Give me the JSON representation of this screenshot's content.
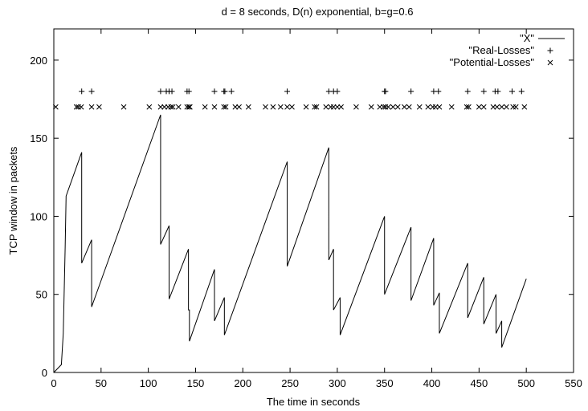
{
  "chart_data": {
    "type": "line",
    "title": "d = 8 seconds, D(n) exponential, b=g=0.6",
    "xlabel": "The time in seconds",
    "ylabel": "TCP window in packets",
    "xlim": [
      0,
      550
    ],
    "ylim": [
      0,
      220
    ],
    "xticks": [
      0,
      50,
      100,
      150,
      200,
      250,
      300,
      350,
      400,
      450,
      500,
      550
    ],
    "yticks": [
      0,
      50,
      100,
      150,
      200
    ],
    "grid": false,
    "legend_position": "top-right",
    "series": [
      {
        "name": "\"X\"",
        "style": "line",
        "x": [
          0,
          8,
          10,
          12,
          13,
          29.5,
          29.5,
          40,
          40,
          113,
          113,
          122,
          122,
          142.5,
          142.5,
          143.5,
          143.5,
          170,
          170,
          180.5,
          180.5,
          247,
          247,
          291,
          291,
          296,
          296,
          303,
          303,
          350,
          350,
          378,
          378,
          402,
          402,
          408,
          408,
          438,
          438,
          455,
          455,
          468,
          468,
          474,
          474,
          500
        ],
        "y": [
          0,
          5,
          25,
          80,
          113,
          141,
          70,
          85,
          42,
          165,
          82,
          94,
          47,
          79,
          40,
          40,
          20,
          66,
          33,
          48,
          24,
          135,
          68,
          144,
          72,
          79,
          40,
          48,
          24,
          100,
          50,
          93,
          46,
          86,
          43,
          51,
          25,
          70,
          35,
          61,
          31,
          50,
          25,
          33,
          16,
          60
        ]
      },
      {
        "name": "\"Real-Losses\"",
        "style": "plus",
        "color": "#000000",
        "y_level": 180,
        "x": [
          29.5,
          40,
          113,
          119,
          122,
          125,
          141,
          143,
          170,
          180,
          181,
          188,
          247,
          291,
          296,
          300,
          350,
          351,
          378,
          402,
          407,
          438,
          455,
          467,
          470,
          485,
          495
        ]
      },
      {
        "name": "\"Potential-Losses\"",
        "style": "cross",
        "color": "#000000",
        "y_level": 170,
        "x": [
          2,
          24,
          26,
          29,
          40,
          48,
          74,
          101,
          113,
          117,
          121,
          124,
          126,
          132,
          141,
          143,
          144,
          160,
          170,
          180,
          182,
          192,
          196,
          206,
          224,
          232,
          240,
          247,
          252,
          267,
          276,
          278,
          288,
          293,
          296,
          300,
          304,
          320,
          336,
          345,
          349,
          351,
          354,
          359,
          364,
          371,
          376,
          387,
          396,
          401,
          404,
          408,
          421,
          437,
          439,
          450,
          455,
          465,
          469,
          474,
          479,
          486,
          489,
          498
        ]
      }
    ]
  }
}
